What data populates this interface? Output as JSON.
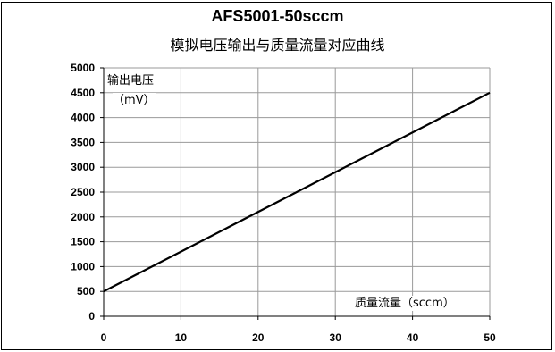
{
  "chart_data": {
    "type": "line",
    "title": "AFS5001-50sccm",
    "subtitle": "模拟电压输出与质量流量对应曲线",
    "ylabel": "输出电压",
    "yunit": "（mV）",
    "xlabel": "质量流量（sccm）",
    "xlim": [
      0,
      50
    ],
    "ylim": [
      0,
      5000
    ],
    "xticks": [
      "0",
      "10",
      "20",
      "30",
      "40",
      "50"
    ],
    "yticks": [
      "0",
      "500",
      "1000",
      "1500",
      "2000",
      "2500",
      "3000",
      "3500",
      "4000",
      "4500",
      "5000"
    ],
    "grid": true,
    "series": [
      {
        "x": [
          0,
          50
        ],
        "y": [
          500,
          4500
        ],
        "color": "#000000"
      }
    ]
  }
}
